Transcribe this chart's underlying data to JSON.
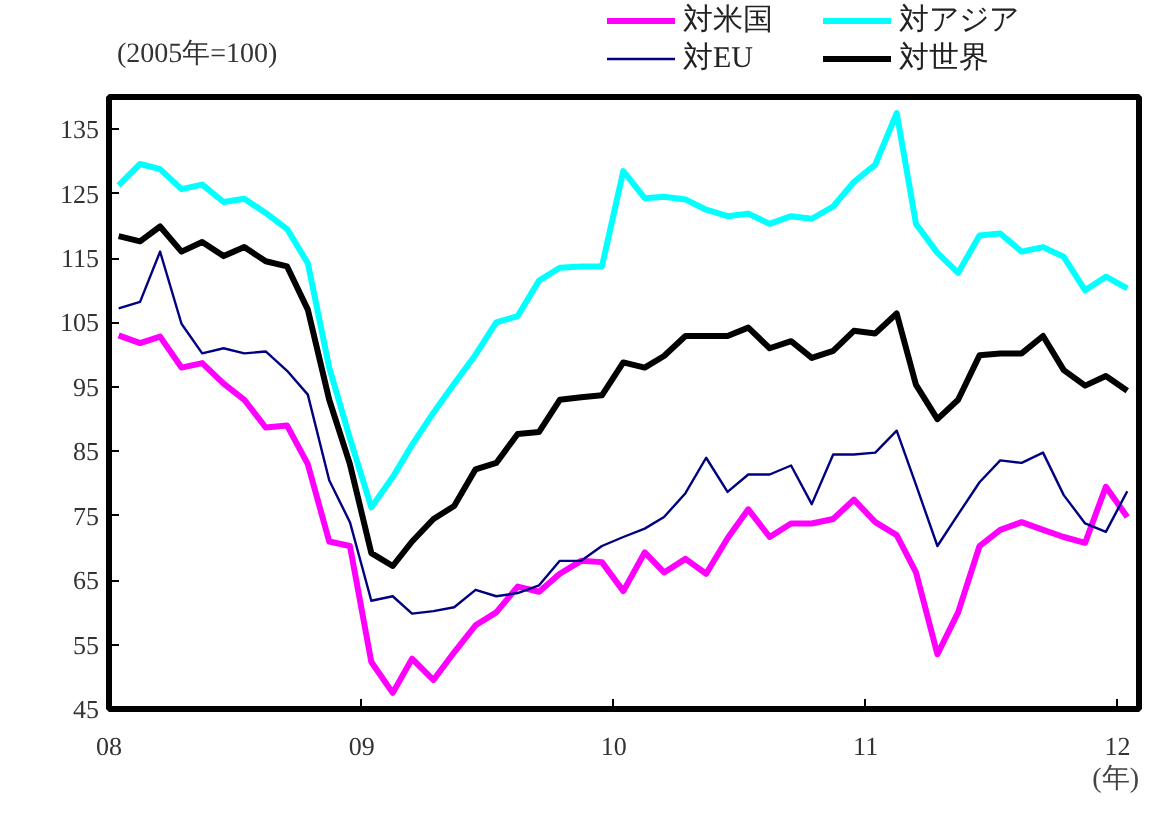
{
  "chart_data": {
    "type": "line",
    "ylabel": "(2005年=100)",
    "xlabel": "(年)",
    "x": [
      "2008-01-15",
      "2008-02-15",
      "2008-03-15",
      "2008-04-15",
      "2008-05-15",
      "2008-06-15",
      "2008-07-15",
      "2008-08-15",
      "2008-09-15",
      "2008-10-15",
      "2008-11-15",
      "2008-12-15",
      "2009-01-15",
      "2009-02-15",
      "2009-03-15",
      "2009-04-15",
      "2009-05-15",
      "2009-06-15",
      "2009-07-15",
      "2009-08-15",
      "2009-09-15",
      "2009-10-15",
      "2009-11-15",
      "2009-12-15",
      "2010-01-15",
      "2010-02-15",
      "2010-03-15",
      "2010-04-15",
      "2010-05-15",
      "2010-06-15",
      "2010-07-15",
      "2010-08-15",
      "2010-09-15",
      "2010-10-15",
      "2010-11-15",
      "2010-12-15",
      "2011-01-15",
      "2011-02-15",
      "2011-03-15",
      "2011-04-15",
      "2011-05-15",
      "2011-06-15",
      "2011-07-15",
      "2011-08-15",
      "2011-09-15",
      "2011-10-15",
      "2011-11-15",
      "2011-12-15",
      "2012-01-15"
    ],
    "series": [
      {
        "name": "対米国",
        "color": "#ff00ff",
        "values": [
          103,
          101.8,
          102.8,
          98,
          98.7,
          95.5,
          93,
          88.7,
          89,
          83,
          71,
          70.3,
          52.3,
          47.5,
          52.8,
          49.5,
          53.8,
          58,
          60,
          64,
          63.2,
          66,
          68,
          67.8,
          63.3,
          69.3,
          66.2,
          68.3,
          66,
          71.5,
          76,
          71.7,
          73.8,
          73.8,
          74.5,
          77.5,
          74,
          72,
          66.2,
          53.5,
          60,
          70.3,
          72.8,
          74,
          72.8,
          71.7,
          70.8,
          79.5,
          74.8
        ]
      },
      {
        "name": "対EU",
        "color": "#000080",
        "values": [
          107.2,
          108.2,
          116,
          104.8,
          100.2,
          101,
          100.2,
          100.5,
          97.5,
          93.8,
          80.5,
          74,
          61.8,
          62.5,
          59.8,
          60.2,
          60.8,
          63.5,
          62.5,
          63,
          64.2,
          68,
          68,
          70.3,
          71.7,
          73,
          74.8,
          78.5,
          84,
          78.7,
          81.4,
          81.4,
          82.8,
          76.8,
          84.5,
          84.5,
          84.8,
          88.2,
          79.8,
          70.3,
          75.2,
          80.2,
          83.6,
          83.2,
          84.8,
          78.2,
          73.8,
          72.5,
          78.8
        ]
      },
      {
        "name": "対アジア",
        "color": "#00ffff",
        "values": [
          126.3,
          129.6,
          128.8,
          125.7,
          126.4,
          123.7,
          124.2,
          122,
          119.5,
          114.2,
          98,
          87,
          76.3,
          81,
          86,
          91,
          95.5,
          100,
          105,
          106,
          111.5,
          113.5,
          113.7,
          113.7,
          128.5,
          124.3,
          124.5,
          124.1,
          122.5,
          121.5,
          121.9,
          120.3,
          121.5,
          121.1,
          123,
          126.8,
          129.5,
          137.5,
          120.3,
          115.8,
          112.7,
          118.5,
          118.8,
          116,
          116.7,
          115.2,
          110,
          112.1,
          110.3
        ]
      },
      {
        "name": "対世界",
        "color": "#000000",
        "values": [
          118.4,
          117.6,
          119.9,
          116,
          117.5,
          115.3,
          116.7,
          114.5,
          113.7,
          107,
          93,
          83,
          69.2,
          67.2,
          71,
          74.5,
          76.5,
          82.2,
          83.2,
          87.7,
          88,
          93,
          93.4,
          93.7,
          98.8,
          98,
          99.8,
          102.9,
          102.9,
          102.9,
          104.2,
          101,
          102.1,
          99.5,
          100.6,
          103.7,
          103.3,
          106.4,
          95.3,
          90,
          93,
          99.9,
          100.2,
          100.2,
          102.9,
          97.6,
          95.2,
          96.7,
          94.4
        ]
      }
    ],
    "xlim": [
      "2008-01",
      "2012-02"
    ],
    "xticks": [
      {
        "value": "2008-01",
        "label": "08"
      },
      {
        "value": "2009-01",
        "label": "09"
      },
      {
        "value": "2010-01",
        "label": "10"
      },
      {
        "value": "2011-01",
        "label": "11"
      },
      {
        "value": "2012-01",
        "label": "12"
      }
    ],
    "ylim": [
      45,
      140
    ],
    "yticks": [
      45,
      55,
      65,
      75,
      85,
      95,
      105,
      115,
      125,
      135
    ],
    "grid": false,
    "legend": "top right",
    "marker": "none",
    "line_style": "solid"
  }
}
